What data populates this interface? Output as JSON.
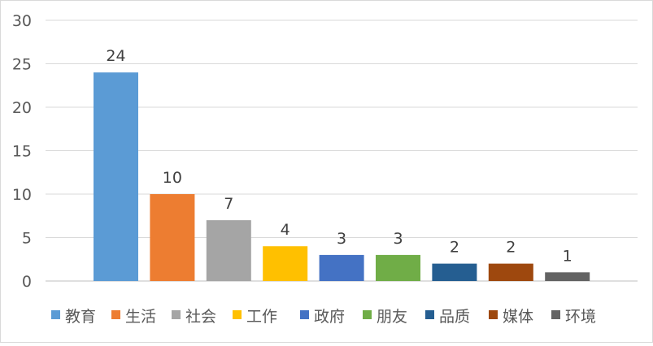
{
  "chart_data": {
    "type": "bar",
    "categories": [
      "教育",
      "生活",
      "社会",
      "工作",
      "政府",
      "朋友",
      "品质",
      "媒体",
      "环境"
    ],
    "values": [
      24,
      10,
      7,
      4,
      3,
      3,
      2,
      2,
      1
    ],
    "colors": [
      "#5b9bd5",
      "#ed7d31",
      "#a5a5a5",
      "#ffc000",
      "#4472c4",
      "#70ad47",
      "#255e91",
      "#9e480e",
      "#636363"
    ],
    "ylim": [
      0,
      30
    ],
    "yticks": [
      0,
      5,
      10,
      15,
      20,
      25,
      30
    ],
    "grid": true,
    "data_labels": true,
    "legend": "bottom"
  }
}
